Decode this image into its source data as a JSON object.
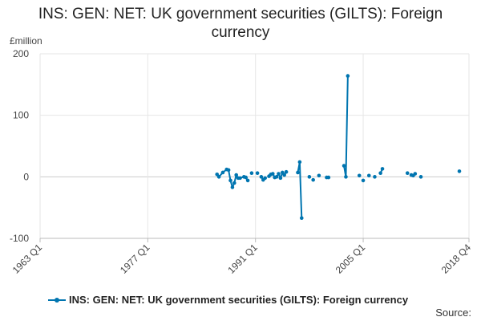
{
  "chart_data": {
    "type": "line",
    "title_line1": "INS: GEN: NET: UK government securities (GILTS): Foreign",
    "title_line2": "currency",
    "ylabel": "£million",
    "ylim": [
      -100,
      200
    ],
    "yticks": [
      -100,
      0,
      100,
      200
    ],
    "xlim": [
      "1963 Q1",
      "2018 Q4"
    ],
    "xticks": [
      "1963 Q1",
      "1977 Q1",
      "1991 Q1",
      "2005 Q1",
      "2018 Q4"
    ],
    "grid": true,
    "legend_position": "bottom",
    "source_label": "Source:",
    "series": [
      {
        "name": "INS: GEN: NET: UK government securities (GILTS): Foreign currency",
        "color": "#0075b0",
        "segments": [
          [
            {
              "x": "1986 Q1",
              "y": 4
            },
            {
              "x": "1986 Q2",
              "y": 0
            },
            {
              "x": "1986 Q4",
              "y": 7
            },
            {
              "x": "1987 Q2",
              "y": 12
            },
            {
              "x": "1987 Q3",
              "y": 11
            },
            {
              "x": "1987 Q4",
              "y": -6
            },
            {
              "x": "1988 Q1",
              "y": -17
            },
            {
              "x": "1988 Q2",
              "y": -10
            },
            {
              "x": "1988 Q3",
              "y": 3
            },
            {
              "x": "1988 Q4",
              "y": -2
            },
            {
              "x": "1989 Q1",
              "y": -2
            },
            {
              "x": "1989 Q3",
              "y": 0
            },
            {
              "x": "1989 Q4",
              "y": -1
            },
            {
              "x": "1990 Q1",
              "y": -6
            }
          ],
          [
            {
              "x": "1990 Q3",
              "y": 6
            }
          ],
          [
            {
              "x": "1991 Q2",
              "y": 6
            }
          ],
          [
            {
              "x": "1991 Q4",
              "y": 0
            },
            {
              "x": "1992 Q1",
              "y": -5
            },
            {
              "x": "1992 Q2",
              "y": -2
            }
          ],
          [
            {
              "x": "1992 Q4",
              "y": 1
            },
            {
              "x": "1993 Q1",
              "y": 4
            },
            {
              "x": "1993 Q2",
              "y": 5
            },
            {
              "x": "1993 Q3",
              "y": -1
            },
            {
              "x": "1993 Q4",
              "y": 0
            },
            {
              "x": "1994 Q1",
              "y": 5
            },
            {
              "x": "1994 Q2",
              "y": -2
            },
            {
              "x": "1994 Q3",
              "y": 7
            },
            {
              "x": "1994 Q4",
              "y": 3
            },
            {
              "x": "1995 Q1",
              "y": 8
            }
          ],
          [
            {
              "x": "1996 Q3",
              "y": 7
            },
            {
              "x": "1996 Q4",
              "y": 24
            },
            {
              "x": "1997 Q1",
              "y": -67
            }
          ],
          [
            {
              "x": "1998 Q1",
              "y": 0
            }
          ],
          [
            {
              "x": "1998 Q3",
              "y": -5
            }
          ],
          [
            {
              "x": "1999 Q2",
              "y": 2
            }
          ],
          [
            {
              "x": "2000 Q2",
              "y": -1
            },
            {
              "x": "2000 Q3",
              "y": -1
            }
          ],
          [
            {
              "x": "2002 Q3",
              "y": 18
            },
            {
              "x": "2002 Q4",
              "y": 0
            },
            {
              "x": "2003 Q1",
              "y": 164
            }
          ],
          [
            {
              "x": "2004 Q3",
              "y": 2
            }
          ],
          [
            {
              "x": "2005 Q1",
              "y": -6
            }
          ],
          [
            {
              "x": "2005 Q4",
              "y": 2
            }
          ],
          [
            {
              "x": "2006 Q3",
              "y": 0
            }
          ],
          [
            {
              "x": "2007 Q2",
              "y": 6
            },
            {
              "x": "2007 Q3",
              "y": 13
            }
          ],
          [
            {
              "x": "2010 Q4",
              "y": 6
            }
          ],
          [
            {
              "x": "2011 Q2",
              "y": 3
            },
            {
              "x": "2011 Q3",
              "y": 2
            },
            {
              "x": "2011 Q4",
              "y": 5
            }
          ],
          [
            {
              "x": "2012 Q3",
              "y": 0
            }
          ],
          [
            {
              "x": "2017 Q3",
              "y": 9
            }
          ]
        ]
      }
    ]
  }
}
